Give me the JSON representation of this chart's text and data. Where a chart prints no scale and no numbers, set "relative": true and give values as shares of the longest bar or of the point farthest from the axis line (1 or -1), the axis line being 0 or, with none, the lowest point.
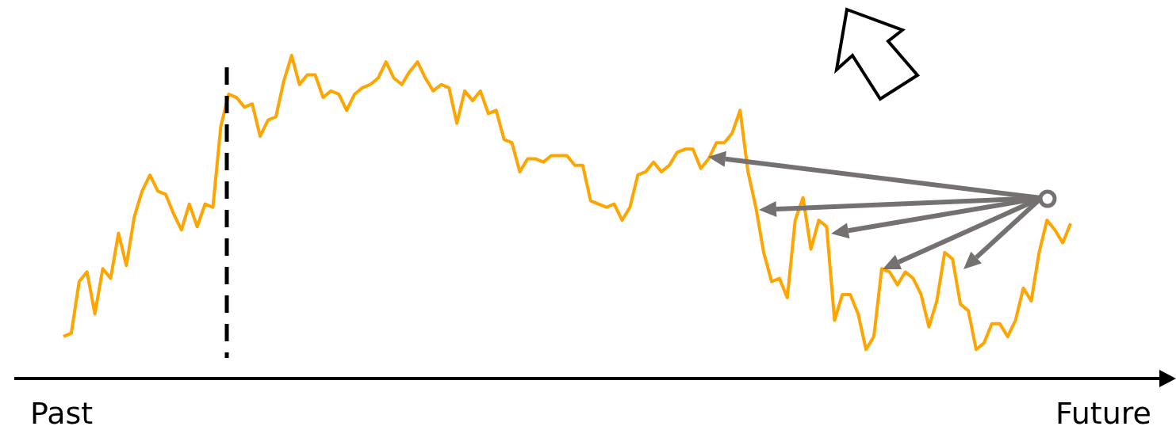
{
  "chart_data": {
    "type": "line",
    "relative": true,
    "categories": [
      null,
      null,
      null,
      null,
      null,
      null,
      null,
      null,
      null,
      null,
      null,
      null,
      null,
      null,
      null,
      null,
      null,
      null,
      null,
      null,
      null,
      null,
      null,
      null,
      null,
      null,
      null,
      null,
      null,
      null,
      null,
      null,
      null,
      null,
      null,
      null,
      null,
      null,
      null,
      null,
      null,
      null,
      null,
      null,
      null,
      null,
      null,
      null,
      null,
      null,
      null,
      null,
      null,
      null,
      null,
      null,
      null,
      null,
      null,
      null,
      null,
      null,
      null,
      null,
      null,
      null,
      null,
      null,
      null,
      null,
      null,
      null,
      null,
      null,
      null,
      null,
      null,
      null,
      null,
      null,
      null,
      null,
      null,
      null,
      null,
      null,
      null,
      null,
      null,
      null,
      null,
      null,
      null,
      null,
      null,
      null,
      null,
      null,
      null,
      null,
      null,
      null,
      null,
      null,
      null,
      null,
      null,
      null,
      null,
      null,
      null,
      null,
      null,
      null,
      null,
      null,
      null,
      null,
      null,
      null,
      null,
      null,
      null,
      null,
      null,
      null,
      null,
      null,
      null
    ],
    "series": [
      {
        "color": "#ffa500",
        "values": [
          0.13,
          0.14,
          0.3,
          0.33,
          0.2,
          0.34,
          0.31,
          0.45,
          0.35,
          0.5,
          0.58,
          0.63,
          0.58,
          0.57,
          0.51,
          0.46,
          0.54,
          0.47,
          0.54,
          0.53,
          0.78,
          0.88,
          0.87,
          0.84,
          0.85,
          0.75,
          0.8,
          0.81,
          0.92,
          1,
          0.91,
          0.94,
          0.94,
          0.87,
          0.89,
          0.88,
          0.83,
          0.88,
          0.9,
          0.91,
          0.93,
          0.98,
          0.93,
          0.91,
          0.95,
          0.98,
          0.93,
          0.89,
          0.91,
          0.9,
          0.79,
          0.89,
          0.86,
          0.89,
          0.82,
          0.83,
          0.74,
          0.73,
          0.64,
          0.68,
          0.68,
          0.67,
          0.69,
          0.69,
          0.69,
          0.66,
          0.66,
          0.55,
          0.54,
          0.53,
          0.54,
          0.49,
          0.53,
          0.63,
          0.64,
          0.67,
          0.64,
          0.66,
          0.7,
          0.71,
          0.71,
          0.65,
          0.68,
          0.73,
          0.73,
          0.76,
          0.83,
          0.64,
          0.53,
          0.39,
          0.3,
          0.31,
          0.25,
          0.49,
          0.56,
          0.4,
          0.49,
          0.47,
          0.18,
          0.26,
          0.26,
          0.2,
          0.09,
          0.13,
          0.34,
          0.33,
          0.29,
          0.33,
          0.31,
          0.26,
          0.16,
          0.24,
          0.39,
          0.37,
          0.23,
          0.21,
          0.09,
          0.11,
          0.17,
          0.17,
          0.13,
          0.18,
          0.28,
          0.24,
          0.39,
          0.49,
          0.46,
          0.42,
          0.48
        ]
      }
    ],
    "line_style": "solid",
    "annotations": [
      "Past",
      "Future"
    ]
  }
}
